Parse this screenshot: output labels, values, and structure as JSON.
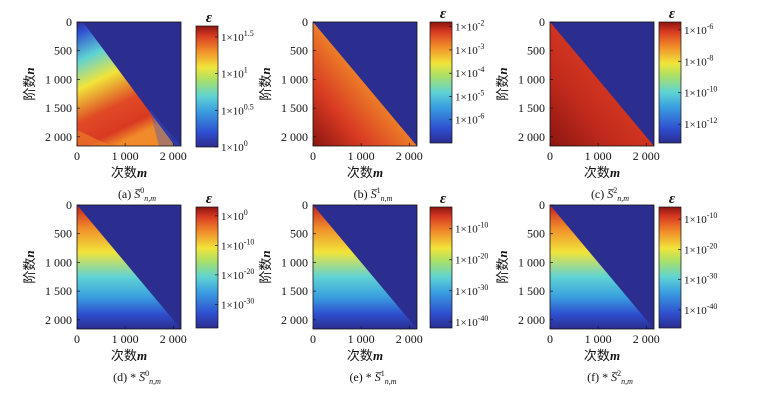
{
  "chart_data": [
    {
      "type": "heatmap",
      "panel": "a",
      "caption_prefix": "(a)",
      "caption_symbol": "S̅",
      "caption_sup": "0",
      "caption_sub": "n,m",
      "xlabel_text": "次数",
      "xlabel_var": "m",
      "ylabel_text": "阶数",
      "ylabel_var": "n",
      "x_ticks": [
        "0",
        "1 000",
        "2 000"
      ],
      "x_tick_values": [
        0,
        1000,
        2000
      ],
      "y_ticks": [
        "0",
        "500",
        "1 000",
        "1 500",
        "2 000"
      ],
      "y_tick_values": [
        0,
        500,
        1000,
        1500,
        2000
      ],
      "xlim": [
        0,
        2160
      ],
      "ylim": [
        0,
        2160
      ],
      "colorbar_label": "ε",
      "colorbar_ticks": [
        {
          "base": "1×10",
          "exp": "1.5",
          "log10": 1.5
        },
        {
          "base": "1×10",
          "exp": "1",
          "log10": 1.0
        },
        {
          "base": "1×10",
          "exp": "0.5",
          "log10": 0.5
        },
        {
          "base": "1×10",
          "exp": "0",
          "log10": 0.0
        }
      ],
      "colorbar_range_log10": [
        0,
        1.65
      ],
      "description": "error grows with n; peak near n≈2000 at low m"
    },
    {
      "type": "heatmap",
      "panel": "b",
      "caption_prefix": "(b)",
      "caption_symbol": "S̅",
      "caption_sup": "1",
      "caption_sub": "n,m",
      "xlabel_text": "次数",
      "xlabel_var": "m",
      "ylabel_text": "阶数",
      "ylabel_var": "n",
      "x_ticks": [
        "0",
        "1 000",
        "2 000"
      ],
      "x_tick_values": [
        0,
        1000,
        2000
      ],
      "y_ticks": [
        "0",
        "500",
        "1 000",
        "1 500",
        "2 000"
      ],
      "y_tick_values": [
        0,
        500,
        1000,
        1500,
        2000
      ],
      "xlim": [
        0,
        2160
      ],
      "ylim": [
        0,
        2160
      ],
      "colorbar_label": "ε",
      "colorbar_ticks": [
        {
          "base": "1×10",
          "exp": "-2",
          "log10": -2
        },
        {
          "base": "1×10",
          "exp": "-3",
          "log10": -3
        },
        {
          "base": "1×10",
          "exp": "-4",
          "log10": -4
        },
        {
          "base": "1×10",
          "exp": "-5",
          "log10": -5
        },
        {
          "base": "1×10",
          "exp": "-6",
          "log10": -6
        }
      ],
      "colorbar_range_log10": [
        -7,
        -1.8
      ],
      "description": "error increases with n, maximum at n=2160, m≈0"
    },
    {
      "type": "heatmap",
      "panel": "c",
      "caption_prefix": "(c)",
      "caption_symbol": "S̅",
      "caption_sup": "2",
      "caption_sub": "n,m",
      "xlabel_text": "次数",
      "xlabel_var": "m",
      "ylabel_text": "阶数",
      "ylabel_var": "n",
      "x_ticks": [
        "0",
        "1 000",
        "2 000"
      ],
      "x_tick_values": [
        0,
        1000,
        2000
      ],
      "y_ticks": [
        "0",
        "500",
        "1 000",
        "1 500",
        "2 000"
      ],
      "y_tick_values": [
        0,
        500,
        1000,
        1500,
        2000
      ],
      "xlim": [
        0,
        2160
      ],
      "ylim": [
        0,
        2160
      ],
      "colorbar_label": "ε",
      "colorbar_ticks": [
        {
          "base": "1×10",
          "exp": "-6",
          "log10": -6
        },
        {
          "base": "1×10",
          "exp": "-8",
          "log10": -8
        },
        {
          "base": "1×10",
          "exp": "-10",
          "log10": -10
        },
        {
          "base": "1×10",
          "exp": "-12",
          "log10": -12
        }
      ],
      "colorbar_range_log10": [
        -13.2,
        -5.5
      ],
      "description": "error increases with n, maximum at n=2160, m≈0"
    },
    {
      "type": "heatmap",
      "panel": "d",
      "caption_prefix": "(d) *",
      "caption_symbol": "S̅",
      "caption_sup": "0",
      "caption_sub": "n,m",
      "xlabel_text": "次数",
      "xlabel_var": "m",
      "ylabel_text": "阶数",
      "ylabel_var": "n",
      "x_ticks": [
        "0",
        "1 000",
        "2 000"
      ],
      "x_tick_values": [
        0,
        1000,
        2000
      ],
      "y_ticks": [
        "0",
        "500",
        "1 000",
        "1 500",
        "2 000"
      ],
      "y_tick_values": [
        0,
        500,
        1000,
        1500,
        2000
      ],
      "xlim": [
        0,
        2160
      ],
      "ylim": [
        0,
        2160
      ],
      "colorbar_label": "ε",
      "colorbar_ticks": [
        {
          "base": "1×10",
          "exp": "0",
          "log10": 0
        },
        {
          "base": "1×10",
          "exp": "-10",
          "log10": -10
        },
        {
          "base": "1×10",
          "exp": "-20",
          "log10": -20
        },
        {
          "base": "1×10",
          "exp": "-30",
          "log10": -30
        }
      ],
      "colorbar_range_log10": [
        -38,
        3
      ],
      "description": "value decreases with n; largest at n=0"
    },
    {
      "type": "heatmap",
      "panel": "e",
      "caption_prefix": "(e) *",
      "caption_symbol": "S̅",
      "caption_sup": "1",
      "caption_sub": "n,m",
      "xlabel_text": "次数",
      "xlabel_var": "m",
      "ylabel_text": "阶数",
      "ylabel_var": "n",
      "x_ticks": [
        "0",
        "1 000",
        "2 000"
      ],
      "x_tick_values": [
        0,
        1000,
        2000
      ],
      "y_ticks": [
        "0",
        "500",
        "1 000",
        "1 500",
        "2 000"
      ],
      "y_tick_values": [
        0,
        500,
        1000,
        1500,
        2000
      ],
      "xlim": [
        0,
        2160
      ],
      "ylim": [
        0,
        2160
      ],
      "colorbar_label": "ε",
      "colorbar_ticks": [
        {
          "base": "1×10",
          "exp": "-10",
          "log10": -10
        },
        {
          "base": "1×10",
          "exp": "-20",
          "log10": -20
        },
        {
          "base": "1×10",
          "exp": "-30",
          "log10": -30
        },
        {
          "base": "1×10",
          "exp": "-40",
          "log10": -40
        }
      ],
      "colorbar_range_log10": [
        -42,
        -3
      ],
      "description": "value decreases with n; largest at n=0"
    },
    {
      "type": "heatmap",
      "panel": "f",
      "caption_prefix": "(f) *",
      "caption_symbol": "S̅",
      "caption_sup": "2",
      "caption_sub": "n,m",
      "xlabel_text": "次数",
      "xlabel_var": "m",
      "ylabel_text": "阶数",
      "ylabel_var": "n",
      "x_ticks": [
        "0",
        "1 000",
        "2 000"
      ],
      "x_tick_values": [
        0,
        1000,
        2000
      ],
      "y_ticks": [
        "0",
        "500",
        "1 000",
        "1 500",
        "2 000"
      ],
      "y_tick_values": [
        0,
        500,
        1000,
        1500,
        2000
      ],
      "xlim": [
        0,
        2160
      ],
      "ylim": [
        0,
        2160
      ],
      "colorbar_label": "ε",
      "colorbar_ticks": [
        {
          "base": "1×10",
          "exp": "-10",
          "log10": -10
        },
        {
          "base": "1×10",
          "exp": "-20",
          "log10": -20
        },
        {
          "base": "1×10",
          "exp": "-30",
          "log10": -30
        },
        {
          "base": "1×10",
          "exp": "-40",
          "log10": -40
        }
      ],
      "colorbar_range_log10": [
        -46,
        -6
      ],
      "description": "value decreases with n; largest at n=0"
    }
  ],
  "colors": {
    "background": "#2b2d8f",
    "axis": "#111111"
  }
}
